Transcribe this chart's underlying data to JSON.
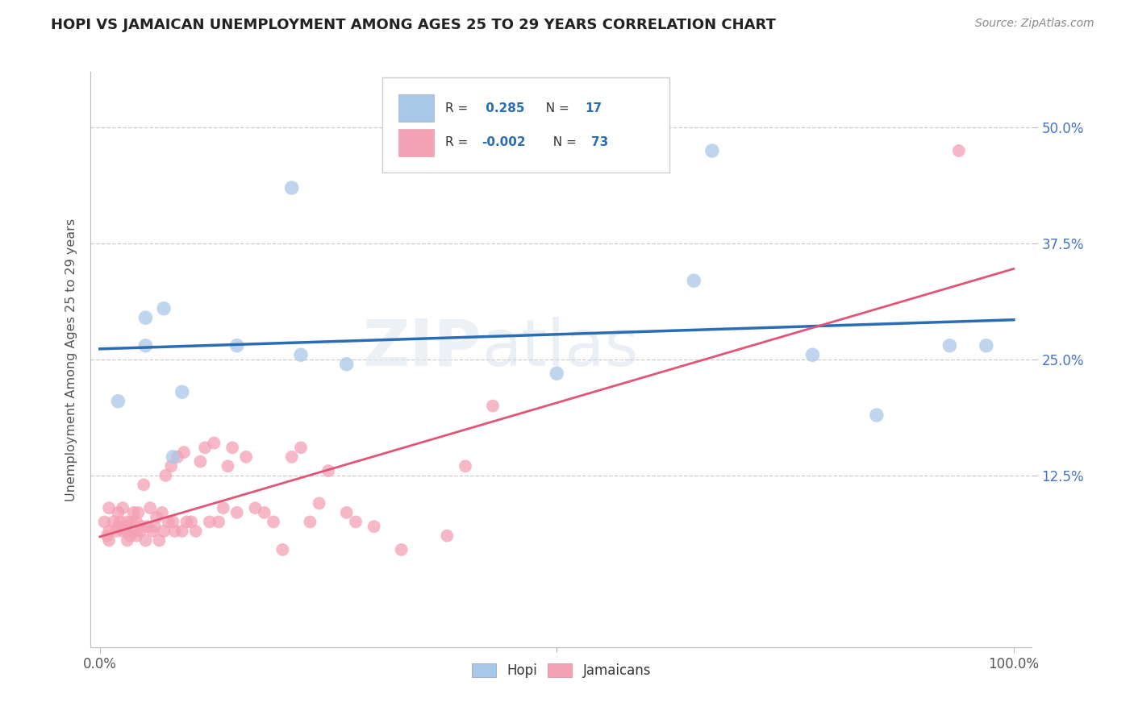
{
  "title": "HOPI VS JAMAICAN UNEMPLOYMENT AMONG AGES 25 TO 29 YEARS CORRELATION CHART",
  "source": "Source: ZipAtlas.com",
  "ylabel": "Unemployment Among Ages 25 to 29 years",
  "xlim": [
    -0.01,
    1.02
  ],
  "ylim": [
    -0.06,
    0.56
  ],
  "legend_r_hopi": "0.285",
  "legend_n_hopi": "17",
  "legend_r_jamaican": "-0.002",
  "legend_n_jamaican": "73",
  "hopi_color": "#a8c8e8",
  "jamaican_color": "#f4a0b5",
  "hopi_line_color": "#2a6db5",
  "jamaican_line_color": "#e05575",
  "hopi_x": [
    0.02,
    0.05,
    0.05,
    0.07,
    0.08,
    0.09,
    0.15,
    0.21,
    0.22,
    0.27,
    0.5,
    0.65,
    0.67,
    0.78,
    0.85,
    0.93,
    0.97
  ],
  "hopi_y": [
    0.205,
    0.265,
    0.295,
    0.305,
    0.145,
    0.215,
    0.265,
    0.435,
    0.255,
    0.245,
    0.235,
    0.335,
    0.475,
    0.255,
    0.19,
    0.265,
    0.265
  ],
  "jamaican_x": [
    0.005,
    0.008,
    0.01,
    0.01,
    0.01,
    0.015,
    0.018,
    0.02,
    0.02,
    0.022,
    0.025,
    0.025,
    0.028,
    0.03,
    0.03,
    0.03,
    0.033,
    0.035,
    0.037,
    0.038,
    0.04,
    0.04,
    0.042,
    0.044,
    0.046,
    0.048,
    0.05,
    0.052,
    0.055,
    0.058,
    0.06,
    0.062,
    0.065,
    0.068,
    0.07,
    0.072,
    0.075,
    0.078,
    0.08,
    0.082,
    0.085,
    0.09,
    0.092,
    0.095,
    0.1,
    0.105,
    0.11,
    0.115,
    0.12,
    0.125,
    0.13,
    0.135,
    0.14,
    0.145,
    0.15,
    0.16,
    0.17,
    0.18,
    0.19,
    0.2,
    0.21,
    0.22,
    0.23,
    0.24,
    0.25,
    0.27,
    0.28,
    0.3,
    0.33,
    0.38,
    0.4,
    0.43,
    0.94
  ],
  "jamaican_y": [
    0.075,
    0.06,
    0.055,
    0.065,
    0.09,
    0.075,
    0.065,
    0.07,
    0.085,
    0.075,
    0.065,
    0.09,
    0.07,
    0.055,
    0.065,
    0.075,
    0.06,
    0.075,
    0.085,
    0.065,
    0.06,
    0.075,
    0.085,
    0.065,
    0.07,
    0.115,
    0.055,
    0.07,
    0.09,
    0.065,
    0.07,
    0.08,
    0.055,
    0.085,
    0.065,
    0.125,
    0.075,
    0.135,
    0.075,
    0.065,
    0.145,
    0.065,
    0.15,
    0.075,
    0.075,
    0.065,
    0.14,
    0.155,
    0.075,
    0.16,
    0.075,
    0.09,
    0.135,
    0.155,
    0.085,
    0.145,
    0.09,
    0.085,
    0.075,
    0.045,
    0.145,
    0.155,
    0.075,
    0.095,
    0.13,
    0.085,
    0.075,
    0.07,
    0.045,
    0.06,
    0.135,
    0.2,
    0.475
  ]
}
